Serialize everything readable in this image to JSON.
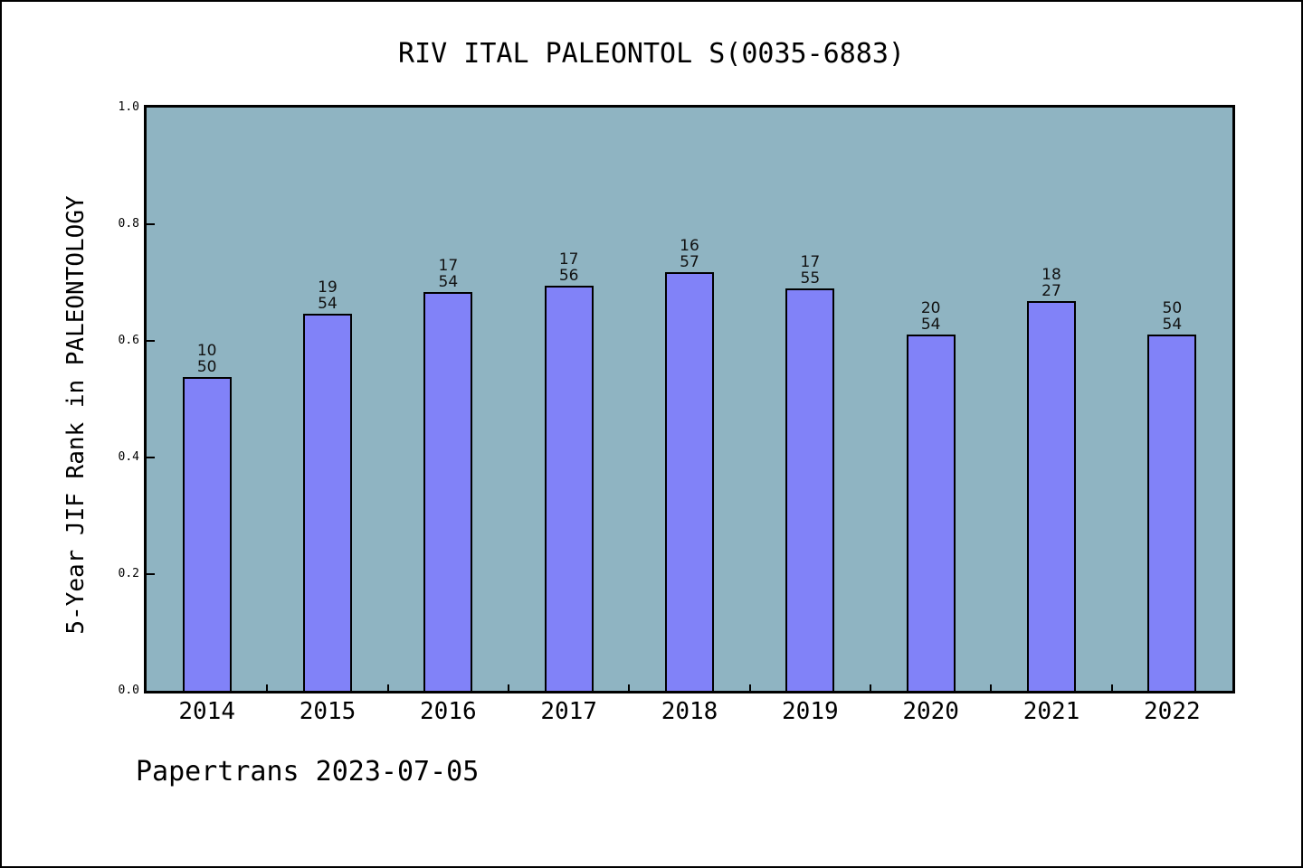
{
  "colors": {
    "plot_background": "#8fb4c2",
    "bar_fill": "#8182f8",
    "bar_border": "#000000",
    "frame_border": "#000000",
    "page_background": "#ffffff"
  },
  "footer": {
    "text": "Papertrans 2023-07-05"
  },
  "chart_data": {
    "type": "bar",
    "title": "RIV ITAL PALEONTOL S(0035-6883)",
    "xlabel": "",
    "ylabel": "5-Year JIF Rank in PALEONTOLOGY",
    "categories": [
      "2014",
      "2015",
      "2016",
      "2017",
      "2018",
      "2019",
      "2020",
      "2021",
      "2022"
    ],
    "values": [
      0.538,
      0.646,
      0.684,
      0.694,
      0.718,
      0.69,
      0.611,
      0.668,
      0.611
    ],
    "bar_labels": [
      [
        "10",
        "50"
      ],
      [
        "19",
        "54"
      ],
      [
        "17",
        "54"
      ],
      [
        "17",
        "56"
      ],
      [
        "16",
        "57"
      ],
      [
        "17",
        "55"
      ],
      [
        "20",
        "54"
      ],
      [
        "18",
        "27"
      ],
      [
        "50",
        "54"
      ]
    ],
    "ylim": [
      0.0,
      1.0
    ],
    "yticks": [
      "0.0",
      "0.2",
      "0.4",
      "0.6",
      "0.8",
      "1.0"
    ],
    "grid": false,
    "legend_position": "none"
  }
}
